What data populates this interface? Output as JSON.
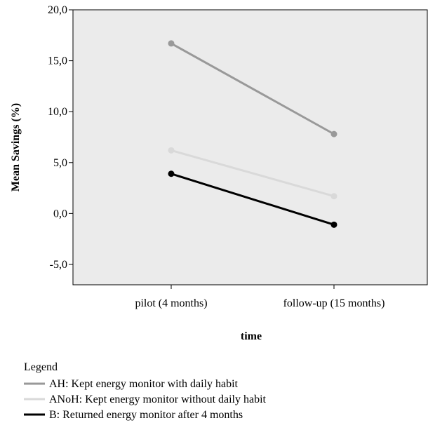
{
  "chart_data": {
    "type": "line",
    "x": [
      "pilot (4 months)",
      "follow-up (15 months)"
    ],
    "xlabel": "time",
    "ylabel": "Mean Savings (%)",
    "ylim": [
      -7,
      20
    ],
    "yticks": [
      20,
      15,
      10,
      5,
      0,
      -5
    ],
    "ytick_labels": [
      "20,0",
      "15,0",
      "10,0",
      "5,0",
      "0,0",
      "-5,0"
    ],
    "grid": false,
    "series": [
      {
        "name": "AH: Kept energy monitor with daily habit",
        "values": [
          16.7,
          7.8
        ],
        "color": "#999999"
      },
      {
        "name": "ANoH: Kept energy monitor without daily habit",
        "values": [
          6.2,
          1.7
        ],
        "color": "#d9d9d9"
      },
      {
        "name": "B: Returned energy monitor after 4 months",
        "values": [
          3.9,
          -1.1
        ],
        "color": "#000000"
      }
    ],
    "legend": {
      "title": "Legend",
      "placement": "bottom"
    },
    "colors": {
      "plot_background": "#ebebeb",
      "axis": "#000000"
    }
  }
}
